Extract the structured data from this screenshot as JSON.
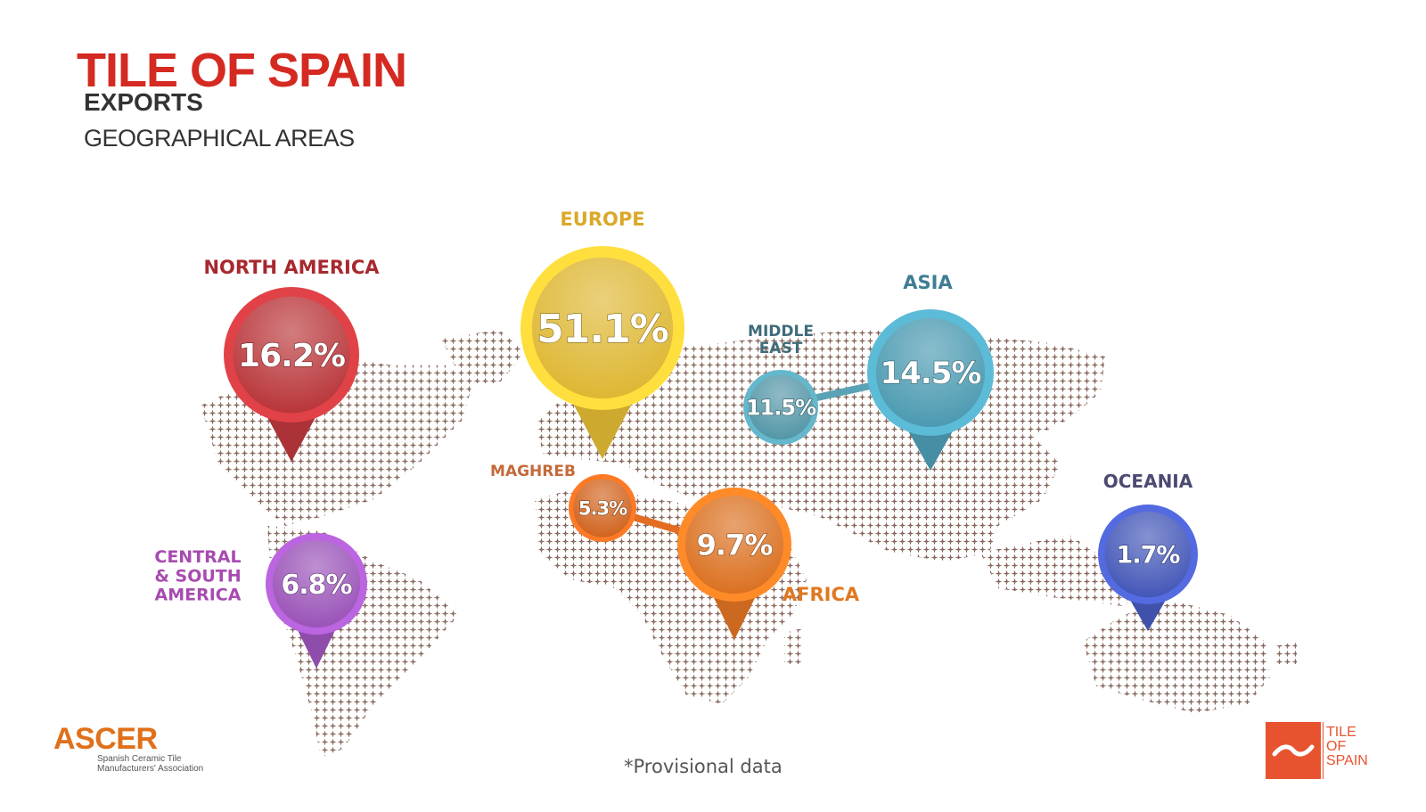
{
  "header": {
    "title": "TILE OF SPAIN",
    "subtitle1": "EXPORTS",
    "subtitle2": "GEOGRAPHICAL AREAS"
  },
  "regions": [
    {
      "key": "north_america",
      "label": "NORTH AMERICA",
      "value": "16.2%",
      "color": "#c93b3f"
    },
    {
      "key": "europe",
      "label": "EUROPE",
      "value": "51.1%",
      "color": "#f1c737"
    },
    {
      "key": "middle_east",
      "label": "MIDDLE EAST",
      "value": "11.5%",
      "color": "#5aa3b6"
    },
    {
      "key": "asia",
      "label": "ASIA",
      "value": "14.5%",
      "color": "#52a7c0"
    },
    {
      "key": "maghreb",
      "label": "MAGHREB",
      "value": "5.3%",
      "color": "#e36d22"
    },
    {
      "key": "africa",
      "label": "AFRICA",
      "value": "9.7%",
      "color": "#ee7b24"
    },
    {
      "key": "central_south_america",
      "label": "CENTRAL & SOUTH AMERICA",
      "value": "6.8%",
      "color": "#a75ac8"
    },
    {
      "key": "oceania",
      "label": "OCEANIA",
      "value": "1.7%",
      "color": "#4a5fc8"
    }
  ],
  "label_colors": {
    "north_america": "#a8282e",
    "europe": "#d9a92a",
    "middle_east": "#3f6b7a",
    "asia": "#3f7d93",
    "maghreb": "#c46a3a",
    "africa": "#e07820",
    "central_south_america": "#a74bb0",
    "oceania": "#4a4a72"
  },
  "map_color": "#8a6a5e",
  "footnote": "*Provisional data",
  "ascer": {
    "name": "ASCER",
    "line1": "Spanish Ceramic Tile",
    "line2": "Manufacturers' Association"
  },
  "logo": {
    "line1": "TILE",
    "line2": "OF",
    "line3": "SPAIN",
    "icon": "wave-icon"
  }
}
